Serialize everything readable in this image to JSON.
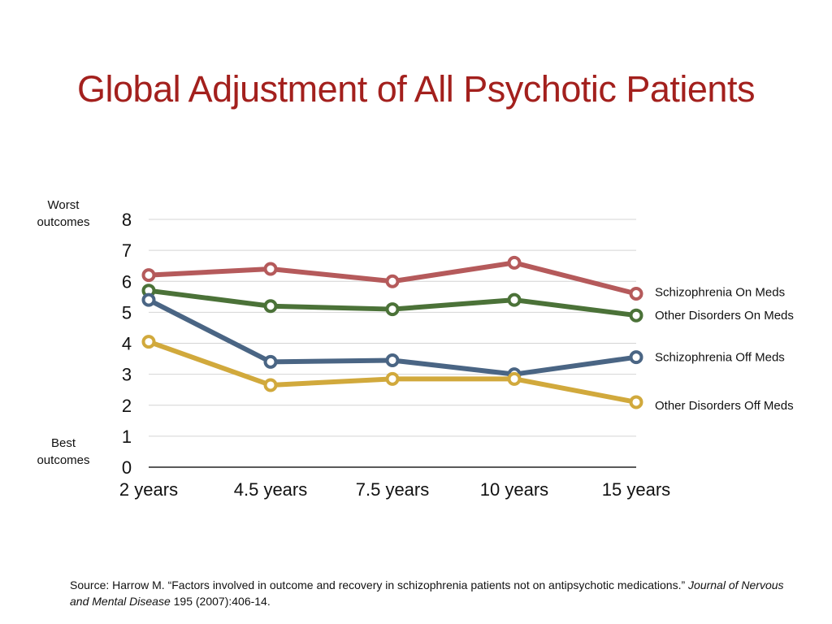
{
  "title": "Global Adjustment of All Psychotic Patients",
  "side_labels": {
    "worst": "Worst outcomes",
    "best": "Best outcomes"
  },
  "source": {
    "prefix": "Source: Harrow M. “Factors involved in outcome and recovery in schizophrenia patients not on antipsychotic medications.” ",
    "journal": "Journal of Nervous and Mental Disease",
    "suffix": " 195 (2007):406-14."
  },
  "chart_data": {
    "type": "line",
    "title": "Global Adjustment of All Psychotic Patients",
    "categories": [
      "2 years",
      "4.5 years",
      "7.5 years",
      "10 years",
      "15 years"
    ],
    "ylim": [
      0,
      8
    ],
    "yticks": [
      0,
      1,
      2,
      3,
      4,
      5,
      6,
      7,
      8
    ],
    "grid": true,
    "legend": "right, labels at line ends",
    "series": [
      {
        "name": "Schizophrenia On Meds",
        "color": "#b55a5b",
        "values": [
          6.2,
          6.4,
          6.0,
          6.6,
          5.6
        ]
      },
      {
        "name": "Other Disorders On Meds",
        "color": "#4b7238",
        "values": [
          5.7,
          5.2,
          5.1,
          5.4,
          4.9
        ]
      },
      {
        "name": "Schizophrenia Off Meds",
        "color": "#4a6584",
        "values": [
          5.4,
          3.4,
          3.45,
          3.0,
          3.55
        ]
      },
      {
        "name": "Other Disorders Off Meds",
        "color": "#d1a93c",
        "values": [
          4.05,
          2.65,
          2.85,
          2.85,
          2.1
        ]
      }
    ]
  }
}
